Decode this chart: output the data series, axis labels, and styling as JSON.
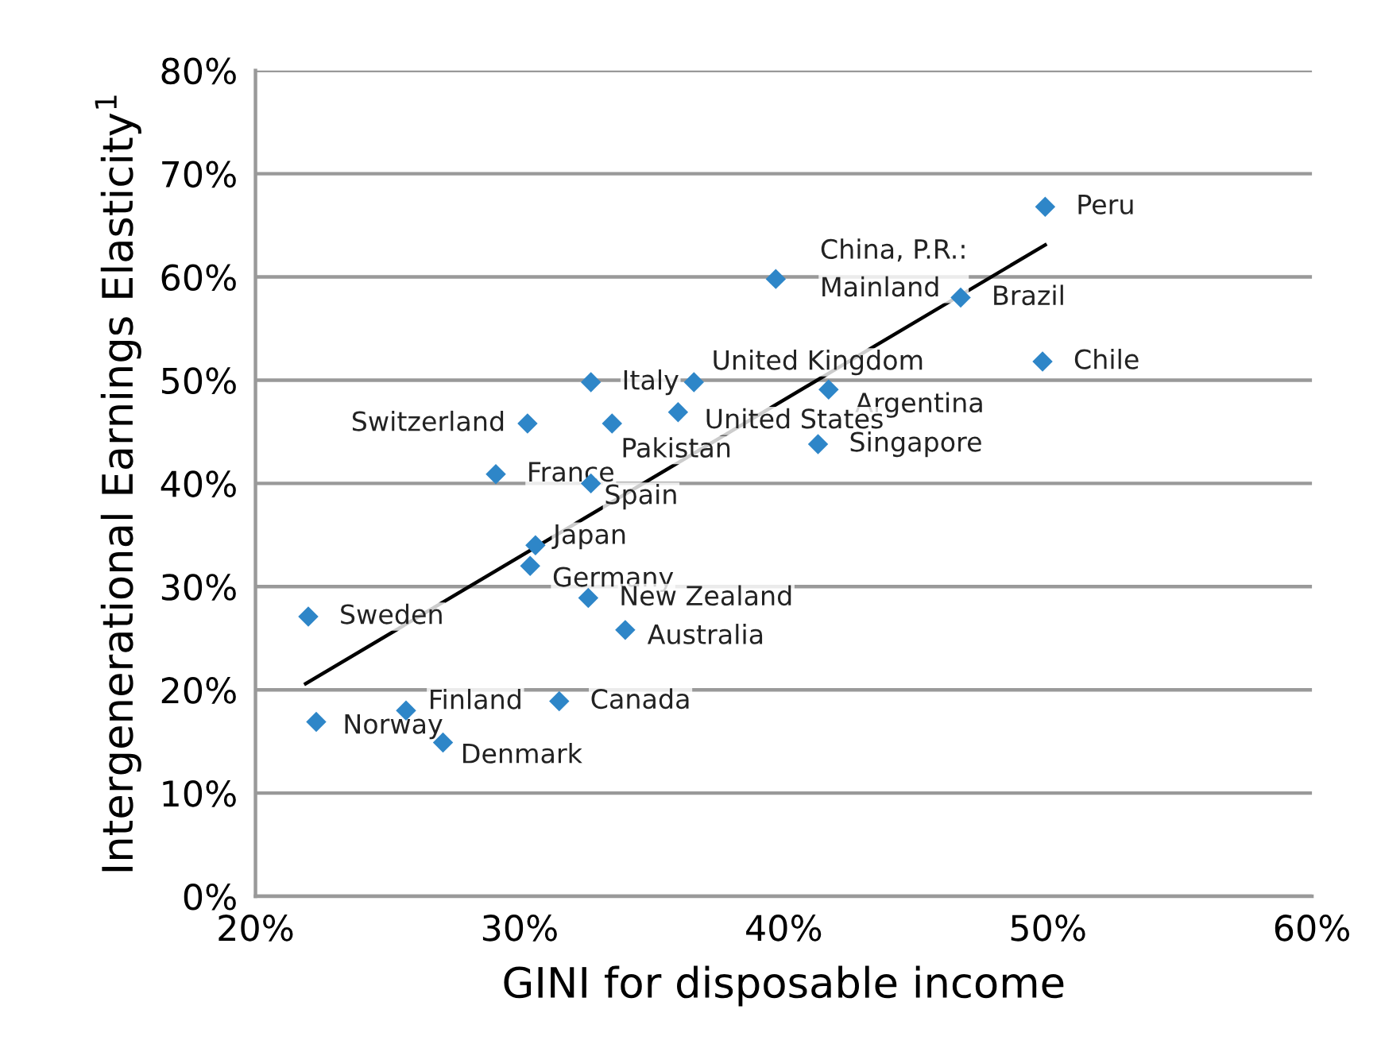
{
  "chart_data": {
    "type": "scatter",
    "xlabel": "GINI for disposable income",
    "ylabel": "Intergenerational Earnings Elasticity$^{1}$",
    "xlim": [
      20,
      60
    ],
    "xticks": [
      {
        "value": 20,
        "label": "20%"
      },
      {
        "value": 30,
        "label": "30%"
      },
      {
        "value": 40,
        "label": "40%"
      },
      {
        "value": 50,
        "label": "50%"
      },
      {
        "value": 60,
        "label": "60%"
      }
    ],
    "ylim": [
      0,
      80
    ],
    "yticks": [
      {
        "value": 0,
        "label": "0%"
      },
      {
        "value": 10,
        "label": "10%"
      },
      {
        "value": 20,
        "label": "20%"
      },
      {
        "value": 30,
        "label": "30%"
      },
      {
        "value": 40,
        "label": "40%"
      },
      {
        "value": 50,
        "label": "50%"
      },
      {
        "value": 60,
        "label": "60%"
      },
      {
        "value": 70,
        "label": "70%"
      },
      {
        "value": 80,
        "label": "80%"
      }
    ],
    "grid": "y",
    "legend": false,
    "series": [
      {
        "marker": "diamond",
        "color": "#2e86c8",
        "x": [
          49.9,
          39.7,
          46.7,
          49.8,
          32.7,
          36.6,
          41.7,
          36.0,
          33.5,
          30.3,
          41.3,
          29.1,
          32.7,
          30.6,
          30.4,
          32.6,
          34.0,
          22.0,
          31.5,
          22.3,
          25.7,
          27.1
        ],
        "values": [
          66.8,
          59.8,
          58.0,
          51.8,
          49.8,
          49.8,
          49.1,
          46.9,
          45.8,
          45.8,
          43.8,
          40.9,
          40.0,
          34.0,
          32.0,
          28.9,
          25.8,
          27.1,
          18.9,
          16.9,
          18.0,
          14.9
        ]
      },
      {
        "type": "line",
        "marker": "none",
        "color": "#000000",
        "x": [
          21.9,
          49.9
        ],
        "values": [
          20.6,
          63.1
        ]
      }
    ],
    "annotations": [
      {
        "text": "Peru",
        "x": 49.9,
        "y": 66.8
      },
      {
        "text": "China, P.R.:\nMainland",
        "x": 39.7,
        "y": 59.8
      },
      {
        "text": "Brazil",
        "x": 46.7,
        "y": 58.0
      },
      {
        "text": "Chile",
        "x": 49.8,
        "y": 51.8
      },
      {
        "text": "Italy",
        "x": 32.7,
        "y": 49.8
      },
      {
        "text": "United Kingdom",
        "x": 36.6,
        "y": 49.8
      },
      {
        "text": "Argentina",
        "x": 41.7,
        "y": 49.1
      },
      {
        "text": "United States",
        "x": 36.0,
        "y": 46.9
      },
      {
        "text": "Pakistan",
        "x": 33.5,
        "y": 45.8
      },
      {
        "text": "Switzerland",
        "x": 30.3,
        "y": 45.8
      },
      {
        "text": "Singapore",
        "x": 41.3,
        "y": 43.8
      },
      {
        "text": "France",
        "x": 29.1,
        "y": 40.9
      },
      {
        "text": "Spain",
        "x": 32.7,
        "y": 40.0
      },
      {
        "text": "Japan",
        "x": 30.6,
        "y": 34.0
      },
      {
        "text": "Germany",
        "x": 30.4,
        "y": 32.0
      },
      {
        "text": "New Zealand",
        "x": 32.6,
        "y": 28.9
      },
      {
        "text": "Australia",
        "x": 34.0,
        "y": 25.8
      },
      {
        "text": "Sweden",
        "x": 22.0,
        "y": 27.1
      },
      {
        "text": "Canada",
        "x": 31.5,
        "y": 18.9
      },
      {
        "text": "Norway",
        "x": 22.3,
        "y": 16.9
      },
      {
        "text": "Finland",
        "x": 25.7,
        "y": 18.0
      },
      {
        "text": "Denmark",
        "x": 27.1,
        "y": 14.9
      }
    ]
  }
}
